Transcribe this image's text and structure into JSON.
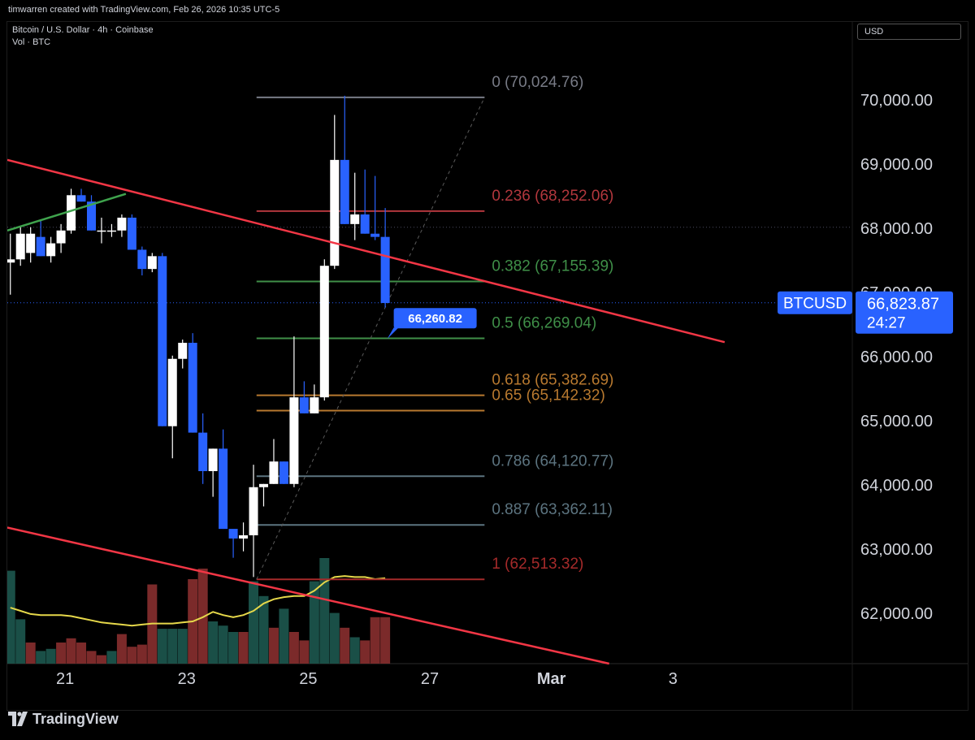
{
  "attribution": "timwarren created with TradingView.com, Feb 26, 2026 10:35 UTC-5",
  "legend": {
    "symbol_line": "Bitcoin / U.S. Dollar · 4h · Coinbase",
    "volume_line": "Vol · BTC"
  },
  "currency_button": "USD",
  "footer_brand": "TradingView",
  "colors": {
    "up": "#ffffff",
    "down": "#2962ff",
    "vol_up": "#1a4f47",
    "vol_down": "#7b2a2a",
    "vol_ma": "#e6d84a",
    "trendline": "#f23645",
    "short_trend": "#3fa34d",
    "price_badge": "#2962ff"
  },
  "chart_data": {
    "type": "candlestick",
    "title": "Bitcoin / U.S. Dollar · 4h · Coinbase",
    "y_range": [
      61200,
      71200
    ],
    "y_ticks": [
      "70,000.00",
      "69,000.00",
      "68,000.00",
      "67,000.00",
      "66,000.00",
      "65,000.00",
      "64,000.00",
      "63,000.00",
      "62,000.00"
    ],
    "y_tick_values": [
      70000,
      69000,
      68000,
      67000,
      66000,
      65000,
      64000,
      63000,
      62000
    ],
    "x_ticks": [
      {
        "label": "21",
        "day": 21
      },
      {
        "label": "23",
        "day": 23
      },
      {
        "label": "25",
        "day": 25
      },
      {
        "label": "27",
        "day": 27
      },
      {
        "label": "Mar",
        "day": 29
      },
      {
        "label": "3",
        "day": 31
      }
    ],
    "x_range_days": [
      20.05,
      33.95
    ],
    "candle_interval_hours": 4,
    "first_candle_day": 20.1,
    "candles": [
      {
        "o": 67450,
        "h": 67900,
        "l": 66950,
        "c": 67500
      },
      {
        "o": 67500,
        "h": 68000,
        "l": 67400,
        "c": 67900
      },
      {
        "o": 67600,
        "h": 68000,
        "l": 67450,
        "c": 67900
      },
      {
        "o": 67850,
        "h": 68100,
        "l": 67550,
        "c": 67550
      },
      {
        "o": 67550,
        "h": 67850,
        "l": 67450,
        "c": 67750
      },
      {
        "o": 67750,
        "h": 68050,
        "l": 67600,
        "c": 67950
      },
      {
        "o": 67950,
        "h": 68600,
        "l": 67900,
        "c": 68500
      },
      {
        "o": 68500,
        "h": 68600,
        "l": 68400,
        "c": 68400
      },
      {
        "o": 68400,
        "h": 68500,
        "l": 67950,
        "c": 67950
      },
      {
        "o": 67950,
        "h": 68150,
        "l": 67750,
        "c": 67950
      },
      {
        "o": 67950,
        "h": 68050,
        "l": 67850,
        "c": 67950
      },
      {
        "o": 67950,
        "h": 68200,
        "l": 67850,
        "c": 68150
      },
      {
        "o": 68150,
        "h": 68200,
        "l": 67650,
        "c": 67650
      },
      {
        "o": 67650,
        "h": 67700,
        "l": 67250,
        "c": 67350
      },
      {
        "o": 67350,
        "h": 67600,
        "l": 67300,
        "c": 67550
      },
      {
        "o": 67550,
        "h": 67600,
        "l": 64900,
        "c": 64900
      },
      {
        "o": 64900,
        "h": 66000,
        "l": 64400,
        "c": 65950
      },
      {
        "o": 65950,
        "h": 66250,
        "l": 65800,
        "c": 66200
      },
      {
        "o": 66200,
        "h": 66350,
        "l": 64800,
        "c": 64800
      },
      {
        "o": 64800,
        "h": 65100,
        "l": 64000,
        "c": 64200
      },
      {
        "o": 64200,
        "h": 64550,
        "l": 63800,
        "c": 64550
      },
      {
        "o": 64550,
        "h": 64850,
        "l": 63300,
        "c": 63300
      },
      {
        "o": 63300,
        "h": 63250,
        "l": 62850,
        "c": 63150
      },
      {
        "o": 63150,
        "h": 63400,
        "l": 62950,
        "c": 63200
      },
      {
        "o": 63200,
        "h": 64300,
        "l": 62550,
        "c": 63950
      },
      {
        "o": 63950,
        "h": 64000,
        "l": 63650,
        "c": 64000
      },
      {
        "o": 64000,
        "h": 64700,
        "l": 64000,
        "c": 64350
      },
      {
        "o": 64350,
        "h": 64350,
        "l": 64000,
        "c": 64000
      },
      {
        "o": 64000,
        "h": 66300,
        "l": 63950,
        "c": 65350
      },
      {
        "o": 65350,
        "h": 65600,
        "l": 65100,
        "c": 65100
      },
      {
        "o": 65100,
        "h": 65550,
        "l": 65100,
        "c": 65350
      },
      {
        "o": 65350,
        "h": 67500,
        "l": 65300,
        "c": 67400
      },
      {
        "o": 67400,
        "h": 69750,
        "l": 67350,
        "c": 69050
      },
      {
        "o": 69050,
        "h": 70050,
        "l": 68050,
        "c": 68050
      },
      {
        "o": 68050,
        "h": 68850,
        "l": 67800,
        "c": 68200
      },
      {
        "o": 68200,
        "h": 68900,
        "l": 67900,
        "c": 67900
      },
      {
        "o": 67900,
        "h": 68800,
        "l": 67800,
        "c": 67850
      },
      {
        "o": 67850,
        "h": 68300,
        "l": 66750,
        "c": 66820
      }
    ],
    "volume": [
      {
        "v": 0.88,
        "up": true
      },
      {
        "v": 0.42,
        "up": true
      },
      {
        "v": 0.2,
        "up": false
      },
      {
        "v": 0.12,
        "up": true
      },
      {
        "v": 0.14,
        "up": true
      },
      {
        "v": 0.2,
        "up": false
      },
      {
        "v": 0.24,
        "up": false
      },
      {
        "v": 0.2,
        "up": false
      },
      {
        "v": 0.12,
        "up": false
      },
      {
        "v": 0.08,
        "up": false
      },
      {
        "v": 0.12,
        "up": true
      },
      {
        "v": 0.28,
        "up": false
      },
      {
        "v": 0.16,
        "up": false
      },
      {
        "v": 0.18,
        "up": false
      },
      {
        "v": 0.75,
        "up": false
      },
      {
        "v": 0.33,
        "up": true
      },
      {
        "v": 0.33,
        "up": true
      },
      {
        "v": 0.33,
        "up": true
      },
      {
        "v": 0.8,
        "up": false
      },
      {
        "v": 0.9,
        "up": false
      },
      {
        "v": 0.4,
        "up": true
      },
      {
        "v": 0.36,
        "up": true
      },
      {
        "v": 0.3,
        "up": true
      },
      {
        "v": 0.3,
        "up": false
      },
      {
        "v": 0.78,
        "up": true
      },
      {
        "v": 0.64,
        "up": true
      },
      {
        "v": 0.34,
        "up": false
      },
      {
        "v": 0.52,
        "up": true
      },
      {
        "v": 0.3,
        "up": false
      },
      {
        "v": 0.22,
        "up": false
      },
      {
        "v": 0.78,
        "up": true
      },
      {
        "v": 1.0,
        "up": true
      },
      {
        "v": 0.48,
        "up": true
      },
      {
        "v": 0.34,
        "up": false
      },
      {
        "v": 0.25,
        "up": true
      },
      {
        "v": 0.22,
        "up": false
      },
      {
        "v": 0.44,
        "up": false
      },
      {
        "v": 0.44,
        "up": false
      }
    ],
    "volume_ma": [
      0.53,
      0.5,
      0.47,
      0.46,
      0.46,
      0.46,
      0.45,
      0.43,
      0.41,
      0.39,
      0.38,
      0.37,
      0.36,
      0.37,
      0.38,
      0.38,
      0.38,
      0.39,
      0.4,
      0.44,
      0.49,
      0.46,
      0.44,
      0.46,
      0.5,
      0.57,
      0.61,
      0.63,
      0.64,
      0.64,
      0.69,
      0.77,
      0.82,
      0.83,
      0.82,
      0.82,
      0.8,
      0.81
    ],
    "fibonacci": {
      "from_day": 24.15,
      "to_day": 27.9,
      "levels": [
        {
          "ratio": "0",
          "label": "0 (70,024.76)",
          "price": 70024.76,
          "color": "#787b86"
        },
        {
          "ratio": "0.236",
          "label": "0.236 (68,252.06)",
          "price": 68252.06,
          "color": "#b2373d"
        },
        {
          "ratio": "0.382",
          "label": "0.382 (67,155.39)",
          "price": 67155.39,
          "color": "#3f8f48"
        },
        {
          "ratio": "0.5",
          "label": "0.5 (66,269.04)",
          "price": 66269.04,
          "color": "#3f8f48"
        },
        {
          "ratio": "0.618",
          "label": "0.618 (65,382.69)",
          "price": 65382.69,
          "color": "#b8792f"
        },
        {
          "ratio": "0.65",
          "label": "0.65 (65,142.32)",
          "price": 65142.32,
          "color": "#b8792f"
        },
        {
          "ratio": "0.786",
          "label": "0.786 (64,120.77)",
          "price": 64120.77,
          "color": "#5c7480"
        },
        {
          "ratio": "0.887",
          "label": "0.887 (63,362.11)",
          "price": 63362.11,
          "color": "#5c7480"
        },
        {
          "ratio": "1",
          "label": "1 (62,513.32)",
          "price": 62513.32,
          "color": "#a52a2a"
        }
      ]
    },
    "trendlines": [
      {
        "name": "upper-resistance",
        "from": {
          "day": 20.05,
          "price": 69050
        },
        "to": {
          "day": 31.85,
          "price": 66210
        },
        "color": "#f23645"
      },
      {
        "name": "lower-support",
        "from": {
          "day": 20.05,
          "price": 63320
        },
        "to": {
          "day": 29.95,
          "price": 61200
        },
        "color": "#f23645"
      },
      {
        "name": "short-uptrend",
        "from": {
          "day": 20.05,
          "price": 67950
        },
        "to": {
          "day": 22.0,
          "price": 68520
        },
        "color": "#3fa34d"
      }
    ],
    "diagonal": {
      "from": {
        "day": 24.15,
        "price": 62513.32
      },
      "to": {
        "day": 27.9,
        "price": 70024.76
      }
    },
    "callout": {
      "label": "66,260.82",
      "price": 66260.82,
      "day": 26.3
    },
    "reference_price": 68000,
    "last_price": {
      "symbol": "BTCUSD",
      "price_label": "66,823.87",
      "price": 66823.87,
      "countdown": "24:27"
    }
  }
}
